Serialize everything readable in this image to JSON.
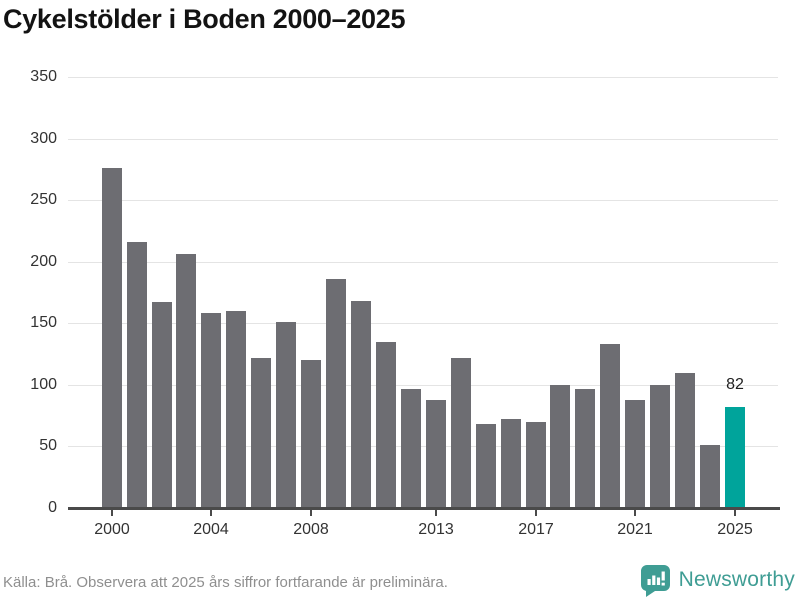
{
  "title": "Cykelstölder i Boden 2000–2025",
  "chart_data": {
    "type": "bar",
    "x": [
      2000,
      2001,
      2002,
      2003,
      2004,
      2005,
      2006,
      2007,
      2008,
      2009,
      2010,
      2011,
      2012,
      2013,
      2014,
      2015,
      2016,
      2017,
      2018,
      2019,
      2020,
      2021,
      2022,
      2023,
      2024,
      2025
    ],
    "values": [
      276,
      216,
      167,
      206,
      158,
      160,
      122,
      151,
      120,
      186,
      168,
      135,
      97,
      88,
      122,
      68,
      72,
      70,
      100,
      97,
      133,
      88,
      100,
      110,
      51,
      82
    ],
    "title": "Cykelstölder i Boden 2000–2025",
    "xlabel": "",
    "ylabel": "",
    "ylim": [
      0,
      350
    ],
    "yticks": [
      0,
      50,
      100,
      150,
      200,
      250,
      300,
      350
    ],
    "xticks": [
      2000,
      2004,
      2008,
      2013,
      2017,
      2021,
      2025
    ],
    "grid": true,
    "legend": null,
    "bar_color": "#6d6d72",
    "highlight": {
      "year": 2025,
      "color": "#00a49b"
    },
    "annotation": {
      "year": 2025,
      "text": "82"
    }
  },
  "footer": {
    "source": "Källa: Brå. Observera att 2025 års siffror fortfarande är preliminära.",
    "brand": "Newsworthy"
  },
  "colors": {
    "background": "#ffffff",
    "gridline": "#e4e4e4",
    "axis": "#4a4a4a",
    "tick_text": "#333333",
    "title_text": "#131313",
    "source_text": "#8f8f8f",
    "brand_teal": "#3f9d94"
  }
}
